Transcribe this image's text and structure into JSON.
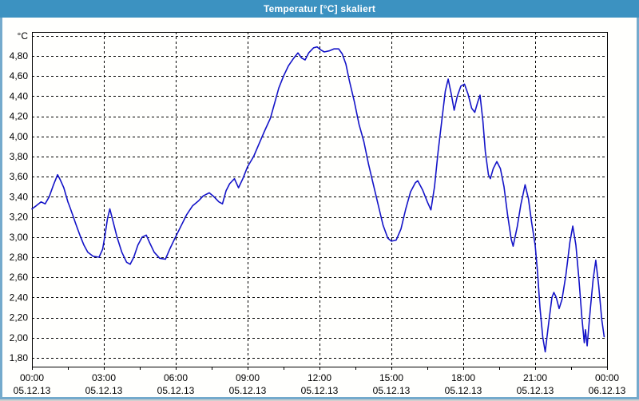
{
  "window": {
    "title": "Temperatur [°C] skaliert"
  },
  "colors": {
    "title_bar": "#3C92C1",
    "title_text": "#FFFFFF",
    "window_border": "#74AACC",
    "plot_background": "#FFFFFF",
    "plot_border": "#000000",
    "grid": "#000000",
    "line": "#1414C8",
    "label_text": "#000000"
  },
  "chart_data": {
    "type": "line",
    "title": "Temperatur [°C] skaliert",
    "unit_label": "°C",
    "legend": "none",
    "grid": "dashed",
    "x_axis": {
      "hours_span": 24,
      "gridline_every_hours": 3,
      "minor_tick_every_hours": 1.5,
      "ticks": [
        {
          "time": "00:00",
          "date": "05.12.13"
        },
        {
          "time": "03:00",
          "date": "05.12.13"
        },
        {
          "time": "06:00",
          "date": "05.12.13"
        },
        {
          "time": "09:00",
          "date": "05.12.13"
        },
        {
          "time": "12:00",
          "date": "05.12.13"
        },
        {
          "time": "15:00",
          "date": "05.12.13"
        },
        {
          "time": "18:00",
          "date": "05.12.13"
        },
        {
          "time": "21:00",
          "date": "05.12.13"
        },
        {
          "time": "00:00",
          "date": "06.12.13"
        }
      ]
    },
    "y_axis": {
      "domain": [
        1.713,
        5.038
      ],
      "grid_values": [
        1.8,
        2.0,
        2.2,
        2.4,
        2.6,
        2.8,
        3.0,
        3.2,
        3.4,
        3.6,
        3.8,
        4.0,
        4.2,
        4.4,
        4.6,
        4.8,
        5.0
      ],
      "tick_values": [
        1.8,
        2.0,
        2.2,
        2.4,
        2.6,
        2.8,
        3.0,
        3.2,
        3.4,
        3.6,
        3.8,
        4.0,
        4.2,
        4.4,
        4.6,
        4.8
      ],
      "tick_labels": [
        "1,80",
        "2,00",
        "2,20",
        "2,40",
        "2,60",
        "2,80",
        "3,00",
        "3,20",
        "3,40",
        "3,60",
        "3,80",
        "4,00",
        "4,20",
        "4,40",
        "4,60",
        "4,80"
      ],
      "unit_at_value": 5.0
    },
    "series": [
      {
        "name": "Temperatur",
        "color": "#1414C8",
        "points": [
          [
            0.0,
            3.28
          ],
          [
            0.17,
            3.31
          ],
          [
            0.38,
            3.35
          ],
          [
            0.55,
            3.33
          ],
          [
            0.72,
            3.4
          ],
          [
            0.9,
            3.52
          ],
          [
            1.07,
            3.62
          ],
          [
            1.18,
            3.57
          ],
          [
            1.33,
            3.49
          ],
          [
            1.5,
            3.35
          ],
          [
            1.58,
            3.3
          ],
          [
            1.7,
            3.22
          ],
          [
            1.83,
            3.13
          ],
          [
            2.0,
            3.02
          ],
          [
            2.17,
            2.92
          ],
          [
            2.33,
            2.85
          ],
          [
            2.55,
            2.81
          ],
          [
            2.8,
            2.8
          ],
          [
            2.95,
            2.88
          ],
          [
            3.05,
            3.02
          ],
          [
            3.15,
            3.18
          ],
          [
            3.25,
            3.28
          ],
          [
            3.38,
            3.16
          ],
          [
            3.55,
            3.0
          ],
          [
            3.75,
            2.85
          ],
          [
            3.95,
            2.75
          ],
          [
            4.1,
            2.73
          ],
          [
            4.25,
            2.8
          ],
          [
            4.42,
            2.92
          ],
          [
            4.6,
            3.0
          ],
          [
            4.77,
            3.02
          ],
          [
            4.92,
            2.94
          ],
          [
            5.1,
            2.85
          ],
          [
            5.33,
            2.79
          ],
          [
            5.57,
            2.78
          ],
          [
            5.75,
            2.88
          ],
          [
            5.95,
            2.98
          ],
          [
            6.2,
            3.1
          ],
          [
            6.45,
            3.22
          ],
          [
            6.7,
            3.31
          ],
          [
            6.95,
            3.36
          ],
          [
            7.15,
            3.41
          ],
          [
            7.4,
            3.44
          ],
          [
            7.6,
            3.4
          ],
          [
            7.8,
            3.35
          ],
          [
            7.95,
            3.33
          ],
          [
            8.1,
            3.46
          ],
          [
            8.25,
            3.53
          ],
          [
            8.45,
            3.58
          ],
          [
            8.62,
            3.49
          ],
          [
            8.8,
            3.58
          ],
          [
            9.0,
            3.7
          ],
          [
            9.25,
            3.8
          ],
          [
            9.5,
            3.94
          ],
          [
            9.7,
            4.05
          ],
          [
            9.95,
            4.18
          ],
          [
            10.15,
            4.35
          ],
          [
            10.3,
            4.48
          ],
          [
            10.5,
            4.6
          ],
          [
            10.7,
            4.7
          ],
          [
            10.9,
            4.77
          ],
          [
            11.1,
            4.83
          ],
          [
            11.25,
            4.78
          ],
          [
            11.4,
            4.76
          ],
          [
            11.55,
            4.83
          ],
          [
            11.75,
            4.88
          ],
          [
            11.9,
            4.89
          ],
          [
            12.05,
            4.86
          ],
          [
            12.2,
            4.84
          ],
          [
            12.4,
            4.85
          ],
          [
            12.6,
            4.87
          ],
          [
            12.8,
            4.87
          ],
          [
            12.95,
            4.82
          ],
          [
            13.1,
            4.72
          ],
          [
            13.25,
            4.55
          ],
          [
            13.45,
            4.35
          ],
          [
            13.65,
            4.12
          ],
          [
            13.85,
            3.95
          ],
          [
            14.05,
            3.72
          ],
          [
            14.25,
            3.52
          ],
          [
            14.45,
            3.32
          ],
          [
            14.65,
            3.12
          ],
          [
            14.85,
            2.99
          ],
          [
            15.0,
            2.96
          ],
          [
            15.2,
            2.97
          ],
          [
            15.4,
            3.08
          ],
          [
            15.6,
            3.28
          ],
          [
            15.8,
            3.45
          ],
          [
            16.0,
            3.54
          ],
          [
            16.1,
            3.56
          ],
          [
            16.3,
            3.47
          ],
          [
            16.5,
            3.35
          ],
          [
            16.65,
            3.27
          ],
          [
            16.8,
            3.5
          ],
          [
            16.95,
            3.85
          ],
          [
            17.1,
            4.15
          ],
          [
            17.25,
            4.45
          ],
          [
            17.37,
            4.57
          ],
          [
            17.5,
            4.42
          ],
          [
            17.62,
            4.26
          ],
          [
            17.75,
            4.4
          ],
          [
            17.9,
            4.5
          ],
          [
            18.05,
            4.52
          ],
          [
            18.2,
            4.42
          ],
          [
            18.35,
            4.28
          ],
          [
            18.48,
            4.24
          ],
          [
            18.6,
            4.34
          ],
          [
            18.7,
            4.41
          ],
          [
            18.82,
            4.15
          ],
          [
            18.92,
            3.85
          ],
          [
            19.05,
            3.62
          ],
          [
            19.13,
            3.58
          ],
          [
            19.25,
            3.68
          ],
          [
            19.4,
            3.75
          ],
          [
            19.55,
            3.68
          ],
          [
            19.7,
            3.5
          ],
          [
            19.85,
            3.22
          ],
          [
            20.0,
            2.98
          ],
          [
            20.08,
            2.91
          ],
          [
            20.25,
            3.1
          ],
          [
            20.4,
            3.32
          ],
          [
            20.58,
            3.52
          ],
          [
            20.72,
            3.38
          ],
          [
            20.85,
            3.15
          ],
          [
            21.0,
            2.92
          ],
          [
            21.1,
            2.65
          ],
          [
            21.2,
            2.3
          ],
          [
            21.32,
            2.0
          ],
          [
            21.42,
            1.86
          ],
          [
            21.55,
            2.12
          ],
          [
            21.7,
            2.4
          ],
          [
            21.78,
            2.45
          ],
          [
            21.88,
            2.4
          ],
          [
            22.0,
            2.29
          ],
          [
            22.12,
            2.38
          ],
          [
            22.28,
            2.62
          ],
          [
            22.45,
            2.95
          ],
          [
            22.57,
            3.11
          ],
          [
            22.7,
            2.92
          ],
          [
            22.82,
            2.6
          ],
          [
            22.95,
            2.2
          ],
          [
            23.05,
            1.95
          ],
          [
            23.1,
            2.08
          ],
          [
            23.17,
            1.92
          ],
          [
            23.3,
            2.28
          ],
          [
            23.42,
            2.58
          ],
          [
            23.53,
            2.77
          ],
          [
            23.65,
            2.52
          ],
          [
            23.78,
            2.18
          ],
          [
            23.88,
            2.01
          ]
        ]
      }
    ]
  }
}
